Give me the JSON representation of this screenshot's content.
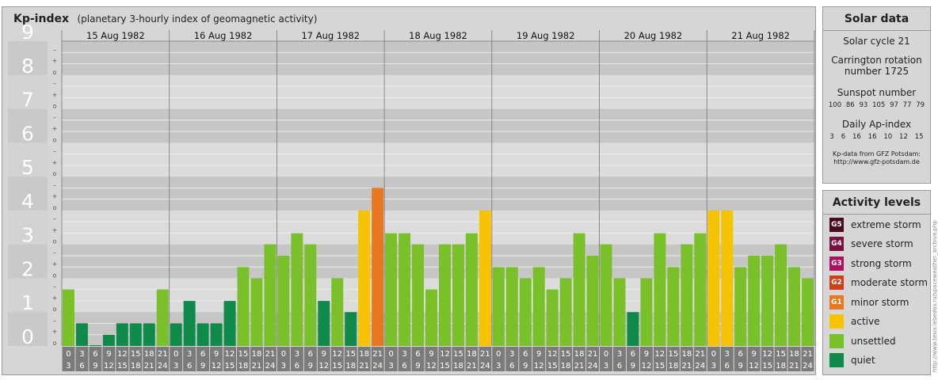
{
  "header": {
    "title": "Kp-index",
    "subtitle": "(planetary 3-hourly index of geomagnetic activity)"
  },
  "chart_data": {
    "type": "bar",
    "title": "Kp-index",
    "subtitle": "(planetary 3-hourly index of geomagnetic activity)",
    "ylim": [
      0,
      9
    ],
    "y_ticks": [
      "0",
      "1",
      "2",
      "3",
      "4",
      "5",
      "6",
      "7",
      "8",
      "9"
    ],
    "minor_tick_symbols": [
      "o",
      "+",
      "–"
    ],
    "days": [
      "15 Aug 1982",
      "16 Aug 1982",
      "17 Aug 1982",
      "18 Aug 1982",
      "19 Aug 1982",
      "20 Aug 1982",
      "21 Aug 1982"
    ],
    "intervals": [
      [
        "0",
        "3"
      ],
      [
        "3",
        "6"
      ],
      [
        "6",
        "9"
      ],
      [
        "9",
        "12"
      ],
      [
        "12",
        "15"
      ],
      [
        "15",
        "18"
      ],
      [
        "18",
        "21"
      ],
      [
        "21",
        "24"
      ]
    ],
    "values": [
      [
        1.67,
        0.67,
        0.0,
        0.33,
        0.67,
        0.67,
        0.67,
        1.67
      ],
      [
        0.67,
        1.33,
        0.67,
        0.67,
        1.33,
        2.33,
        2.0,
        3.0
      ],
      [
        2.67,
        3.33,
        3.0,
        1.33,
        2.0,
        1.0,
        4.0,
        4.67
      ],
      [
        3.33,
        3.33,
        3.0,
        1.67,
        3.0,
        3.0,
        3.33,
        4.0
      ],
      [
        2.33,
        2.33,
        2.0,
        2.33,
        1.67,
        2.0,
        3.33,
        2.67
      ],
      [
        3.0,
        2.0,
        1.0,
        2.0,
        3.33,
        2.33,
        3.0,
        3.33
      ],
      [
        4.0,
        4.0,
        2.33,
        2.67,
        2.67,
        3.0,
        2.33,
        2.0
      ]
    ],
    "grid": true
  },
  "solar": {
    "title": "Solar data",
    "cycle": "Solar cycle 21",
    "carrington_line1": "Carrington rotation",
    "carrington_line2": "number 1725",
    "sunspot_label": "Sunspot number",
    "sunspot_values": [
      "100",
      "86",
      "93",
      "105",
      "97",
      "77",
      "79"
    ],
    "ap_label": "Daily Ap-index",
    "ap_values": [
      "3",
      "6",
      "16",
      "16",
      "10",
      "12",
      "15"
    ],
    "credit_line1": "Kp-data from GFZ Potsdam:",
    "credit_line2": "http://www.gfz-potsdam.de"
  },
  "activity": {
    "title": "Activity levels",
    "levels": [
      {
        "badge": "G5",
        "label": "extreme storm",
        "color": "#4b0a22"
      },
      {
        "badge": "G4",
        "label": "severe storm",
        "color": "#7a1040"
      },
      {
        "badge": "G3",
        "label": "strong storm",
        "color": "#b0115e"
      },
      {
        "badge": "G2",
        "label": "moderate storm",
        "color": "#d2401a"
      },
      {
        "badge": "G1",
        "label": "minor storm",
        "color": "#e87722"
      },
      {
        "badge": "",
        "label": "active",
        "color": "#f7c200"
      },
      {
        "badge": "",
        "label": "unsettled",
        "color": "#7ac02a"
      },
      {
        "badge": "",
        "label": "quiet",
        "color": "#0f8a4a"
      }
    ]
  },
  "watermark": "http://www.tesis.lebedev.ru/spaceweather_archive.php"
}
